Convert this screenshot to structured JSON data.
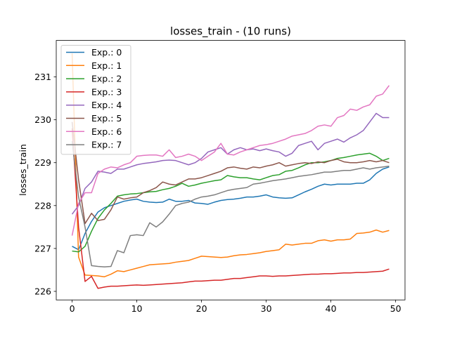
{
  "chart_data": {
    "type": "line",
    "title": "losses_train - (10 runs)",
    "xlabel": "",
    "ylabel": "losses_train",
    "xlim": [
      -2.45,
      51.45
    ],
    "ylim": [
      225.8,
      231.85
    ],
    "xticks": [
      0,
      10,
      20,
      30,
      40,
      50
    ],
    "yticks": [
      226,
      227,
      228,
      229,
      230,
      231
    ],
    "legend_position": "upper-left",
    "x": [
      0,
      1,
      2,
      3,
      4,
      5,
      6,
      7,
      8,
      9,
      10,
      11,
      12,
      13,
      14,
      15,
      16,
      17,
      18,
      19,
      20,
      21,
      22,
      23,
      24,
      25,
      26,
      27,
      28,
      29,
      30,
      31,
      32,
      33,
      34,
      35,
      36,
      37,
      38,
      39,
      40,
      41,
      42,
      43,
      44,
      45,
      46,
      47,
      48,
      49
    ],
    "series": [
      {
        "name": "Exp.: 0",
        "color": "#1f77b4",
        "values": [
          227.05,
          226.97,
          227.35,
          227.63,
          227.85,
          227.95,
          228.0,
          228.05,
          228.1,
          228.13,
          228.15,
          228.1,
          228.08,
          228.07,
          228.08,
          228.15,
          228.1,
          228.1,
          228.12,
          228.06,
          228.05,
          228.03,
          228.08,
          228.12,
          228.14,
          228.15,
          228.17,
          228.2,
          228.2,
          228.22,
          228.25,
          228.2,
          228.18,
          228.17,
          228.18,
          228.25,
          228.32,
          228.38,
          228.45,
          228.5,
          228.48,
          228.5,
          228.5,
          228.5,
          228.52,
          228.52,
          228.6,
          228.75,
          228.85,
          228.9
        ]
      },
      {
        "name": "Exp.: 1",
        "color": "#ff7f0e",
        "values": [
          231.55,
          226.8,
          226.38,
          226.37,
          226.36,
          226.34,
          226.4,
          226.48,
          226.46,
          226.5,
          226.54,
          226.58,
          226.62,
          226.63,
          226.64,
          226.65,
          226.68,
          226.7,
          226.72,
          226.77,
          226.82,
          226.81,
          226.8,
          226.79,
          226.8,
          226.83,
          226.85,
          226.86,
          226.88,
          226.9,
          226.93,
          226.95,
          226.97,
          227.1,
          227.08,
          227.1,
          227.12,
          227.12,
          227.18,
          227.2,
          227.17,
          227.2,
          227.2,
          227.22,
          227.35,
          227.36,
          227.38,
          227.43,
          227.38,
          227.42
        ]
      },
      {
        "name": "Exp.: 2",
        "color": "#2ca02c",
        "values": [
          226.94,
          226.92,
          227.05,
          227.4,
          227.7,
          227.9,
          228.05,
          228.22,
          228.25,
          228.27,
          228.28,
          228.3,
          228.32,
          228.33,
          228.37,
          228.4,
          228.45,
          228.52,
          228.45,
          228.48,
          228.52,
          228.55,
          228.58,
          228.6,
          228.7,
          228.67,
          228.65,
          228.65,
          228.62,
          228.6,
          228.65,
          228.7,
          228.72,
          228.8,
          228.82,
          228.88,
          228.95,
          229.0,
          229.0,
          229.02,
          229.05,
          229.1,
          229.12,
          229.15,
          229.18,
          229.2,
          229.22,
          229.15,
          229.05,
          229.1
        ]
      },
      {
        "name": "Exp.: 3",
        "color": "#d62728",
        "values": [
          229.8,
          227.5,
          226.23,
          226.35,
          226.07,
          226.1,
          226.12,
          226.12,
          226.13,
          226.14,
          226.15,
          226.14,
          226.15,
          226.16,
          226.17,
          226.18,
          226.19,
          226.2,
          226.22,
          226.24,
          226.24,
          226.25,
          226.26,
          226.26,
          226.28,
          226.3,
          226.3,
          226.32,
          226.34,
          226.36,
          226.36,
          226.35,
          226.36,
          226.36,
          226.37,
          226.38,
          226.39,
          226.4,
          226.4,
          226.41,
          226.41,
          226.42,
          226.43,
          226.43,
          226.44,
          226.44,
          226.45,
          226.46,
          226.47,
          226.52
        ]
      },
      {
        "name": "Exp.: 4",
        "color": "#9467bd",
        "values": [
          227.8,
          228.0,
          228.4,
          228.55,
          228.8,
          228.78,
          228.75,
          228.85,
          228.85,
          228.9,
          228.95,
          228.98,
          229.0,
          229.02,
          229.05,
          229.06,
          229.05,
          229.0,
          228.95,
          229.0,
          229.1,
          229.25,
          229.3,
          229.35,
          229.2,
          229.3,
          229.35,
          229.3,
          229.32,
          229.28,
          229.32,
          229.28,
          229.25,
          229.15,
          229.22,
          229.4,
          229.45,
          229.5,
          229.3,
          229.45,
          229.5,
          229.55,
          229.48,
          229.58,
          229.65,
          229.75,
          229.95,
          230.15,
          230.05,
          230.05
        ]
      },
      {
        "name": "Exp.: 5",
        "color": "#8c564b",
        "values": [
          229.95,
          228.6,
          227.58,
          227.82,
          227.65,
          227.68,
          227.9,
          228.2,
          228.15,
          228.18,
          228.2,
          228.3,
          228.35,
          228.42,
          228.55,
          228.5,
          228.48,
          228.55,
          228.62,
          228.62,
          228.65,
          228.7,
          228.75,
          228.8,
          228.88,
          228.9,
          228.87,
          228.85,
          228.9,
          228.88,
          228.92,
          228.95,
          229.0,
          228.92,
          228.95,
          228.98,
          229.0,
          228.98,
          229.02,
          229.0,
          229.05,
          229.08,
          229.02,
          229.0,
          229.0,
          229.02,
          229.05,
          229.02,
          229.05,
          229.0
        ]
      },
      {
        "name": "Exp.: 6",
        "color": "#e377c2",
        "values": [
          227.3,
          228.05,
          228.3,
          228.3,
          228.75,
          228.85,
          228.9,
          228.88,
          228.95,
          229.0,
          229.15,
          229.17,
          229.18,
          229.18,
          229.15,
          229.3,
          229.12,
          229.15,
          229.2,
          229.15,
          229.05,
          229.15,
          229.25,
          229.45,
          229.2,
          229.18,
          229.25,
          229.3,
          229.35,
          229.4,
          229.42,
          229.45,
          229.5,
          229.55,
          229.62,
          229.65,
          229.68,
          229.75,
          229.85,
          229.88,
          229.85,
          230.05,
          230.1,
          230.25,
          230.22,
          230.3,
          230.35,
          230.55,
          230.6,
          230.8
        ]
      },
      {
        "name": "Exp.: 7",
        "color": "#7f7f7f",
        "values": [
          229.5,
          228.2,
          227.5,
          226.6,
          226.58,
          226.57,
          226.58,
          226.95,
          226.9,
          227.3,
          227.32,
          227.3,
          227.6,
          227.5,
          227.62,
          227.8,
          228.0,
          228.05,
          228.08,
          228.15,
          228.2,
          228.22,
          228.25,
          228.3,
          228.35,
          228.38,
          228.4,
          228.42,
          228.5,
          228.52,
          228.55,
          228.58,
          228.6,
          228.62,
          228.65,
          228.68,
          228.7,
          228.72,
          228.75,
          228.78,
          228.78,
          228.8,
          228.82,
          228.82,
          228.85,
          228.88,
          228.85,
          228.88,
          228.9,
          228.92
        ]
      }
    ]
  }
}
